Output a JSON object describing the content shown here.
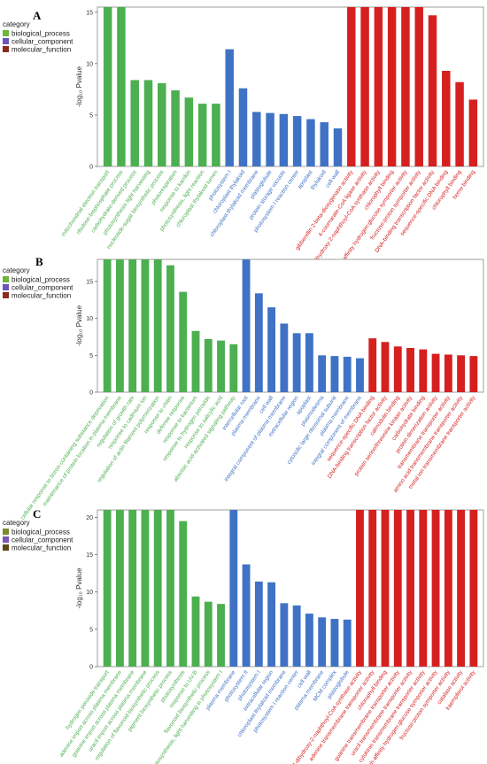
{
  "colors": {
    "biological_process": "#4caf50",
    "cellular_component": "#3f72c4",
    "molecular_function": "#d62020",
    "legend_bp": "#6db63a",
    "legend_cc": "#6a55b8",
    "legend_mf": "#8b2b1d",
    "legend_bp_c": "#7a8a2e",
    "legend_cc_c": "#7b55b5",
    "legend_mf_c": "#5a4a16"
  },
  "chart_data": [
    {
      "panel": "A",
      "type": "bar",
      "ylabel": "-log₁₀ Pvalue",
      "ylim": [
        0,
        15.5
      ],
      "yticks": [
        0,
        5,
        10,
        15
      ],
      "legend": {
        "title": "category",
        "items": [
          "biological_process",
          "cellular_component",
          "molecular_function"
        ],
        "position": "top-left"
      },
      "categories": [
        "mitochondrial electron transport",
        "ribulose-bisphosphate process",
        "carbohydrate-derived process",
        "photosynthesis light harvesting",
        "nucleotide-sugar biosynthetic process",
        "photorespiration",
        "response to karrikin",
        "photosynthesis, light reaction",
        "chloroplast thylakoid lumen",
        "photosystem I",
        "chloroplast thylakoid",
        "chloroplast thylakoid membrane",
        "plastoglobule",
        "protein storage vacuole",
        "photosystem I reaction center",
        "apoplast",
        "thylakoid",
        "cell wall",
        "gibberellin 2-beta-dioxygenase activity",
        "4-coumarate-CoA ligase activity",
        "1,4-dihydroxy-2-naphthoyl-CoA synthase activity",
        "chlorophyll binding",
        "high-affinity hydrogen:glucose symporter activity",
        "fructose:proton symporter activity",
        "DNA-binding transcription factor activity",
        "sequence-specific DNA binding",
        "chlorophyll binding",
        "heme binding"
      ],
      "groups": [
        "biological_process",
        "biological_process",
        "biological_process",
        "biological_process",
        "biological_process",
        "biological_process",
        "biological_process",
        "biological_process",
        "biological_process",
        "cellular_component",
        "cellular_component",
        "cellular_component",
        "cellular_component",
        "cellular_component",
        "cellular_component",
        "cellular_component",
        "cellular_component",
        "cellular_component",
        "molecular_function",
        "molecular_function",
        "molecular_function",
        "molecular_function",
        "molecular_function",
        "molecular_function",
        "molecular_function",
        "molecular_function",
        "molecular_function",
        "molecular_function"
      ],
      "values": [
        15.5,
        15.5,
        8.4,
        8.4,
        8.1,
        7.4,
        6.7,
        6.1,
        6.1,
        11.4,
        7.6,
        5.3,
        5.2,
        5.1,
        4.9,
        4.6,
        4.3,
        3.7,
        15.5,
        15.5,
        15.5,
        15.5,
        15.5,
        15.5,
        14.7,
        9.3,
        8.2,
        6.5
      ]
    },
    {
      "panel": "B",
      "type": "bar",
      "ylabel": "-log₁₀ Pvalue",
      "ylim": [
        0,
        18
      ],
      "yticks": [
        0,
        5,
        10,
        15
      ],
      "legend": {
        "title": "category",
        "items": [
          "biological_process",
          "cellular_component",
          "molecular_function"
        ],
        "position": "top-left"
      },
      "categories": [
        "cellular response to boron-containing substance deprivation",
        "maintenance of protein location in plasma membrane",
        "regulation of growth rate",
        "response to cadmium ion",
        "regulation of actin filament polymerization",
        "response to chitin",
        "defense response",
        "response to bacterium",
        "response to hydrogen peroxide",
        "response to salicylic acid",
        "abscisic acid-activated signaling pathway",
        "intercellular root",
        "plasma membrane",
        "cell wall",
        "integral component of plasma membrane",
        "extracellular region",
        "apoplast",
        "plasmodesma",
        "cytosolic large ribosomal subunit",
        "plasma membrane",
        "integral component of membrane",
        "sequence-specific DNA binding",
        "DNA-binding transcription factor activity",
        "calmodulin binding",
        "protein serine/threonine kinase activity",
        "carbohydrate binding",
        "protein dimerization activity",
        "transmembrane transporter activity",
        "amino acid transmembrane transporter activity",
        "metal ion transmembrane transporter activity"
      ],
      "groups": [
        "biological_process",
        "biological_process",
        "biological_process",
        "biological_process",
        "biological_process",
        "biological_process",
        "biological_process",
        "biological_process",
        "biological_process",
        "biological_process",
        "biological_process",
        "cellular_component",
        "cellular_component",
        "cellular_component",
        "cellular_component",
        "cellular_component",
        "cellular_component",
        "cellular_component",
        "cellular_component",
        "cellular_component",
        "cellular_component",
        "molecular_function",
        "molecular_function",
        "molecular_function",
        "molecular_function",
        "molecular_function",
        "molecular_function",
        "molecular_function",
        "molecular_function",
        "molecular_function"
      ],
      "values": [
        18,
        18,
        18,
        18,
        18,
        17.2,
        13.6,
        8.3,
        7.2,
        7.0,
        6.5,
        18,
        13.4,
        11.5,
        9.3,
        8.0,
        8.0,
        5.0,
        4.9,
        4.8,
        4.6,
        7.3,
        6.8,
        6.2,
        6.0,
        5.8,
        5.2,
        5.1,
        5.0,
        4.9
      ]
    },
    {
      "panel": "C",
      "type": "bar",
      "ylabel": "-log₁₀ Pvalue",
      "ylim": [
        0,
        21
      ],
      "yticks": [
        0,
        5,
        10,
        15,
        20
      ],
      "legend": {
        "title": "category",
        "items": [
          "biological_process",
          "cellular_component",
          "molecular_function"
        ],
        "position": "top-left"
      },
      "categories": [
        "hydrogen peroxide transport",
        "adenine import across plasma membrane",
        "guanine import across plasma membrane",
        "uracil import across plasma membrane",
        "regulation of flavonoid biosynthetic process",
        "pigment biosynthetic process",
        "photosynthesis",
        "response to UV-B",
        "flavonoid biosynthetic process",
        "photosynthesis, light harvesting in photosystem I",
        "plasma membrane",
        "photosystem II",
        "photosystem I",
        "extracellular region",
        "chloroplast thylakoid membrane",
        "photosystem I reaction center",
        "cell wall",
        "plasma membrane",
        "MCM complex",
        "plastoglobule",
        "1,4-dihydroxy-2-naphthoyl-CoA synthase activity",
        "adenine transmembrane transporter activity",
        "chlorophyll binding",
        "guanine transmembrane transporter activity",
        "uracil transmembrane transporter activity",
        "cytokinin transmembrane transporter activity",
        "high-affinity hydrogen:glucose symporter activity",
        "fructose:proton symporter activity",
        "catalase activity",
        "kaempferol activity"
      ],
      "groups": [
        "biological_process",
        "biological_process",
        "biological_process",
        "biological_process",
        "biological_process",
        "biological_process",
        "biological_process",
        "biological_process",
        "biological_process",
        "biological_process",
        "cellular_component",
        "cellular_component",
        "cellular_component",
        "cellular_component",
        "cellular_component",
        "cellular_component",
        "cellular_component",
        "cellular_component",
        "cellular_component",
        "cellular_component",
        "molecular_function",
        "molecular_function",
        "molecular_function",
        "molecular_function",
        "molecular_function",
        "molecular_function",
        "molecular_function",
        "molecular_function",
        "molecular_function",
        "molecular_function"
      ],
      "values": [
        21,
        21,
        21,
        21,
        21,
        21,
        19.5,
        9.4,
        8.7,
        8.4,
        21,
        13.7,
        11.4,
        11.3,
        8.5,
        8.2,
        7.1,
        6.6,
        6.4,
        6.3,
        21,
        21,
        21,
        21,
        21,
        21,
        21,
        21,
        21,
        21
      ]
    }
  ]
}
